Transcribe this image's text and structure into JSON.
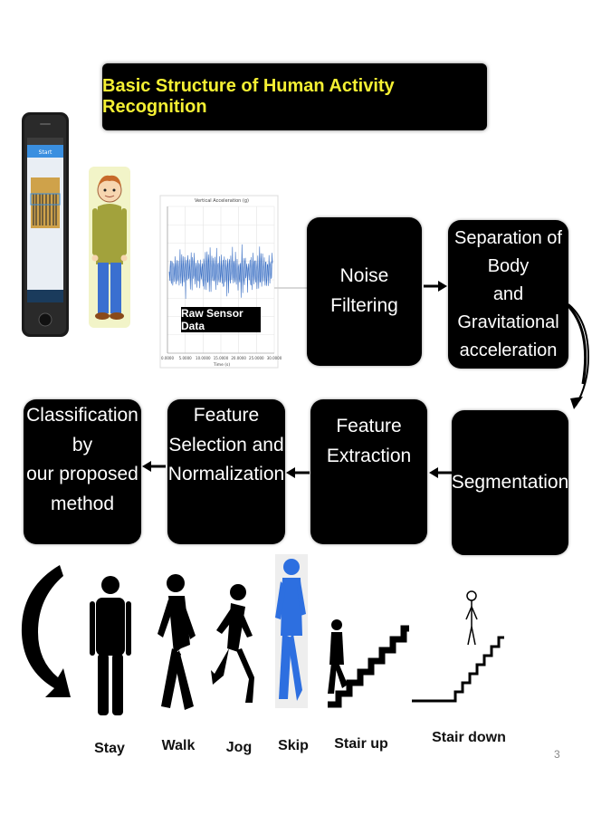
{
  "title": "Basic Structure of Human Activity Recognition",
  "sensor_chart": {
    "title": "Vertical Acceleration (g)",
    "label": "Raw Sensor Data",
    "xticks": [
      "0.0000",
      "5.0000",
      "10.0000",
      "15.0000",
      "20.0000",
      "25.0000",
      "30.0000"
    ],
    "xlabel": "Time (s)"
  },
  "phone": {
    "status_text": "Start"
  },
  "pipeline": {
    "noise_filtering": "Noise Filtering",
    "separation": "Separation of Body\nand Gravitational\nacceleration",
    "segmentation": "Segmentation",
    "feature_extraction": "Feature\nExtraction",
    "feature_selection": "Feature\nSelection and\nNormalization",
    "classification": "Classification by\nour proposed\nmethod"
  },
  "activities": [
    {
      "label": "Stay"
    },
    {
      "label": "Walk"
    },
    {
      "label": "Jog"
    },
    {
      "label": "Skip"
    },
    {
      "label": "Stair up"
    },
    {
      "label": "Stair down"
    }
  ],
  "page_number": "3",
  "colors": {
    "title_text": "#f5f033",
    "box_bg": "#000000",
    "signal_line": "#3a6fc4",
    "skip_figure": "#2d6fe0"
  }
}
